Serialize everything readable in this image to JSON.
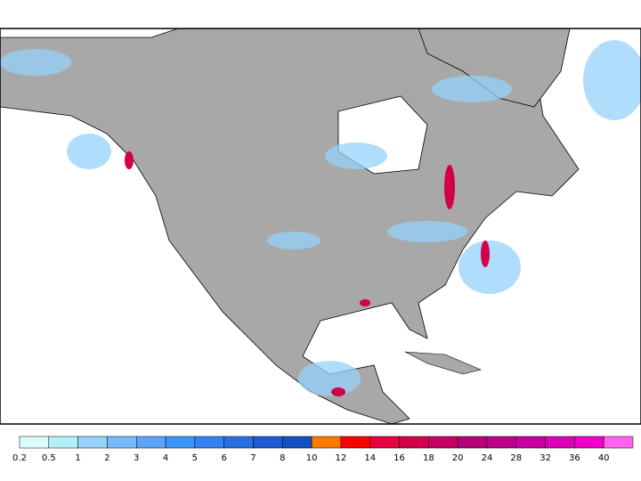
{
  "colorbar": {
    "levels": [
      0.2,
      0.5,
      1,
      2,
      3,
      4,
      5,
      6,
      7,
      8,
      10,
      12,
      14,
      16,
      18,
      20,
      24,
      28,
      32,
      36,
      40
    ],
    "colors": [
      "#dcfcfc",
      "#b4f0f8",
      "#96d2fa",
      "#78b9fa",
      "#5aa5f5",
      "#3c96f5",
      "#3282f0",
      "#2a6fe0",
      "#1e5ad2",
      "#1450be",
      "#ff7800",
      "#ff0000",
      "#e6003c",
      "#d2004b",
      "#c80064",
      "#b40078",
      "#be008c",
      "#c800a0",
      "#dc00b4",
      "#f000c8",
      "#ff64f0"
    ]
  }
}
